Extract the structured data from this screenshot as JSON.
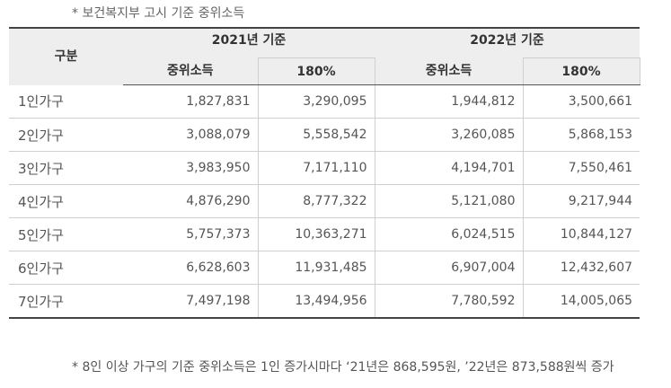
{
  "source_note": "* 보건복지부 고시 기준 중위소득",
  "header": {
    "category": "구분",
    "y2021_l1": "2021년 기준",
    "y2021_l2": "중위소득",
    "y2022_l1": "2022년 기준",
    "y2022_l2": "중위소득",
    "pct_2021": "180%",
    "pct_2022": "180%"
  },
  "rows": [
    {
      "label": "1인가구",
      "m2021": "1,827,831",
      "p2021": "3,290,095",
      "m2022": "1,944,812",
      "p2022": "3,500,661"
    },
    {
      "label": "2인가구",
      "m2021": "3,088,079",
      "p2021": "5,558,542",
      "m2022": "3,260,085",
      "p2022": "5,868,153"
    },
    {
      "label": "3인가구",
      "m2021": "3,983,950",
      "p2021": "7,171,110",
      "m2022": "4,194,701",
      "p2022": "7,550,461"
    },
    {
      "label": "4인가구",
      "m2021": "4,876,290",
      "p2021": "8,777,322",
      "m2022": "5,121,080",
      "p2022": "9,217,944"
    },
    {
      "label": "5인가구",
      "m2021": "5,757,373",
      "p2021": "10,363,271",
      "m2022": "6,024,515",
      "p2022": "10,844,127"
    },
    {
      "label": "6인가구",
      "m2021": "6,628,603",
      "p2021": "11,931,485",
      "m2022": "6,907,004",
      "p2022": "12,432,607"
    },
    {
      "label": "7인가구",
      "m2021": "7,497,198",
      "p2021": "13,494,956",
      "m2022": "7,780,592",
      "p2022": "14,005,065"
    }
  ],
  "footnote": "* 8인 이상 가구의 기준 중위소득은 1인 증가시마다 ‘21년은 868,595원, ’22년은 873,588원씩 증가"
}
